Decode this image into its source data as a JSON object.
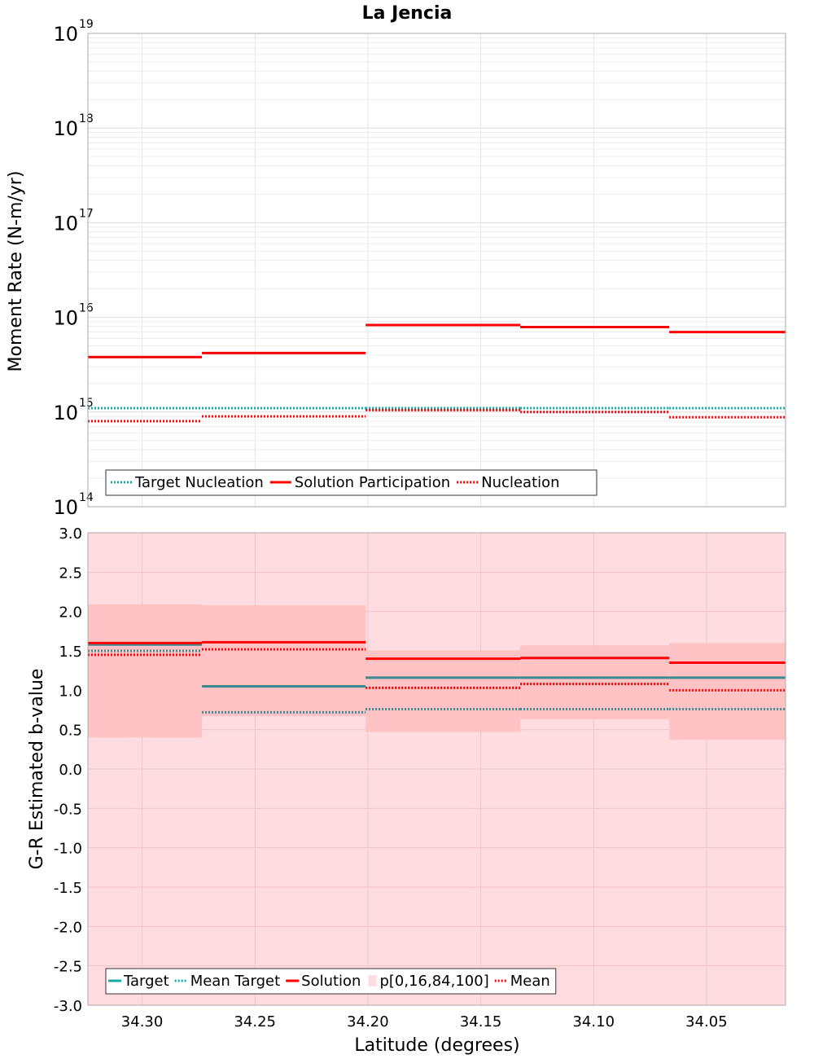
{
  "chart_data": [
    {
      "type": "line",
      "title": "La Jencia",
      "ylabel": "Moment Rate (N-m/yr)",
      "yscale": "log",
      "ylim": [
        100000000000000.0,
        1e+19
      ],
      "y_ticks": [
        {
          "base": "10",
          "exp": "14"
        },
        {
          "base": "10",
          "exp": "15"
        },
        {
          "base": "10",
          "exp": "16"
        },
        {
          "base": "10",
          "exp": "17"
        },
        {
          "base": "10",
          "exp": "18"
        },
        {
          "base": "10",
          "exp": "19"
        }
      ],
      "xlim": [
        34.324,
        34.015
      ],
      "bin_edges": [
        34.324,
        34.2735,
        34.201,
        34.1325,
        34.0665,
        34.015
      ],
      "grid": true,
      "legend": {
        "position": "bottom-left",
        "entries": [
          "Target Nucleation",
          "Solution Participation",
          "Nucleation"
        ]
      },
      "series": [
        {
          "name": "Target Nucleation",
          "style": "dotted",
          "color": "#17a8a8",
          "values": [
            1100000000000000.0,
            1100000000000000.0,
            1100000000000000.0,
            1100000000000000.0,
            1100000000000000.0
          ]
        },
        {
          "name": "Solution Participation",
          "style": "solid",
          "color": "#ff0000",
          "values": [
            3800000000000000.0,
            4200000000000000.0,
            8300000000000000.0,
            7900000000000000.0,
            7000000000000000.0
          ]
        },
        {
          "name": "Nucleation",
          "style": "dotted",
          "color": "#ff0000",
          "values": [
            800000000000000.0,
            900000000000000.0,
            1050000000000000.0,
            1000000000000000.0,
            880000000000000.0
          ]
        }
      ]
    },
    {
      "type": "line",
      "xlabel": "Latitude (degrees)",
      "ylabel": "G-R Estimated b-value",
      "ylim": [
        -3.0,
        3.0
      ],
      "y_ticks": [
        "-3.0",
        "-2.5",
        "-2.0",
        "-1.5",
        "-1.0",
        "-0.5",
        "0.0",
        "0.5",
        "1.0",
        "1.5",
        "2.0",
        "2.5",
        "3.0"
      ],
      "x_ticks": [
        "34.30",
        "34.25",
        "34.20",
        "34.15",
        "34.10",
        "34.05"
      ],
      "x_tick_values": [
        34.3,
        34.25,
        34.2,
        34.15,
        34.1,
        34.05
      ],
      "xlim": [
        34.324,
        34.015
      ],
      "bin_edges": [
        34.324,
        34.2735,
        34.201,
        34.1325,
        34.0665,
        34.015
      ],
      "grid": true,
      "legend": {
        "position": "bottom-left",
        "entries": [
          "Target",
          "Mean Target",
          "Solution",
          "p[0,16,84,100]",
          "Mean"
        ]
      },
      "bands": {
        "name": "p[0,16,84,100]",
        "outer": [
          -3.0,
          3.0
        ],
        "inner": [
          [
            0.4,
            2.09
          ],
          [
            0.67,
            2.08
          ],
          [
            0.47,
            1.5
          ],
          [
            0.63,
            1.57
          ],
          [
            0.37,
            1.6
          ]
        ]
      },
      "series": [
        {
          "name": "Target",
          "style": "solid",
          "color": "#3a8a8f",
          "values": [
            1.58,
            1.05,
            1.16,
            1.16,
            1.16
          ]
        },
        {
          "name": "Mean Target",
          "style": "dotted",
          "color": "#3a8a8f",
          "values": [
            1.5,
            0.72,
            0.76,
            0.76,
            0.76
          ]
        },
        {
          "name": "Solution",
          "style": "solid",
          "color": "#ff0000",
          "values": [
            1.6,
            1.61,
            1.4,
            1.41,
            1.35
          ]
        },
        {
          "name": "Mean",
          "style": "dotted",
          "color": "#ff0000",
          "values": [
            1.45,
            1.52,
            1.03,
            1.08,
            1.0
          ]
        }
      ]
    }
  ]
}
